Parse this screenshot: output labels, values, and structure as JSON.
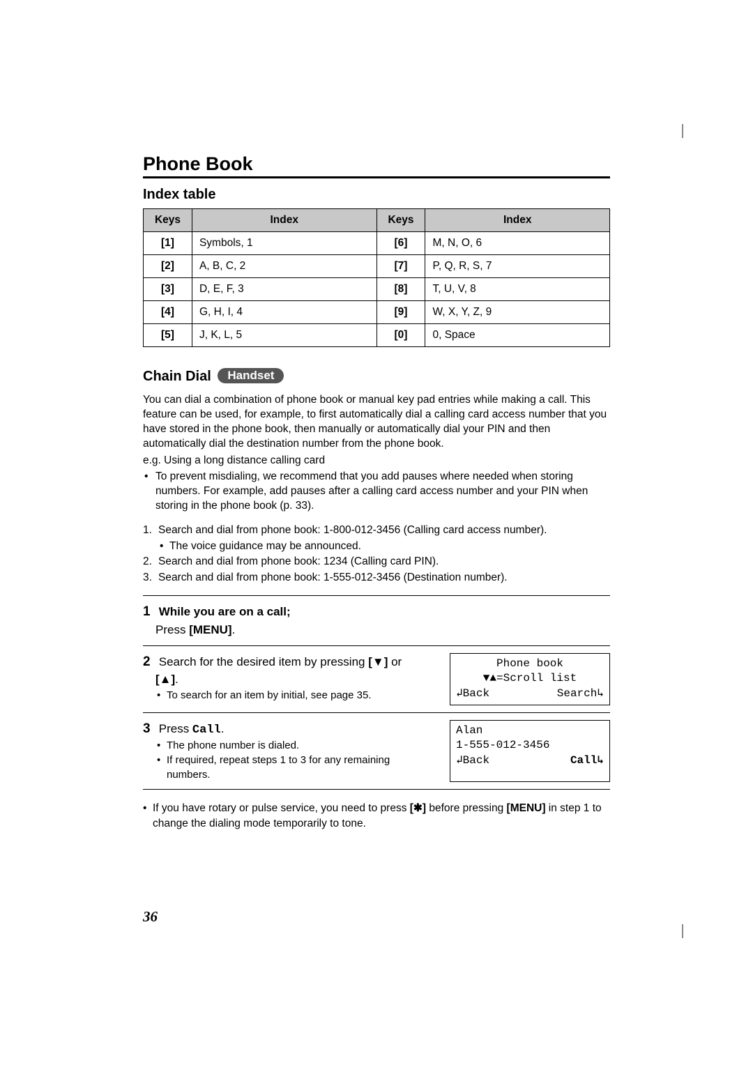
{
  "title": "Phone Book",
  "index_table": {
    "heading": "Index table",
    "headers": {
      "keys": "Keys",
      "index": "Index"
    },
    "left": [
      {
        "key": "[1]",
        "idx": "Symbols, 1"
      },
      {
        "key": "[2]",
        "idx": "A, B, C, 2"
      },
      {
        "key": "[3]",
        "idx": "D, E, F, 3"
      },
      {
        "key": "[4]",
        "idx": "G, H, I, 4"
      },
      {
        "key": "[5]",
        "idx": "J, K, L, 5"
      }
    ],
    "right": [
      {
        "key": "[6]",
        "idx": "M, N, O, 6"
      },
      {
        "key": "[7]",
        "idx": "P, Q, R, S, 7"
      },
      {
        "key": "[8]",
        "idx": "T, U, V, 8"
      },
      {
        "key": "[9]",
        "idx": "W, X, Y, Z, 9"
      },
      {
        "key": "[0]",
        "idx": "0, Space"
      }
    ]
  },
  "chain": {
    "title": "Chain Dial",
    "badge": "Handset",
    "intro": "You can dial a combination of phone book or manual key pad entries while making a call. This feature can be used, for example, to first automatically dial a calling card access number that you have stored in the phone book, then manually or automatically dial your PIN and then automatically dial the destination number from the phone book.",
    "eg": "e.g. Using a long distance calling card",
    "prevent": "To prevent misdialing, we recommend that you add pauses where needed when storing numbers. For example, add pauses after a calling card access number and your PIN when storing in the phone book (p. 33).",
    "steps_plain": {
      "s1": "Search and dial from phone book: 1-800-012-3456 (Calling card access number).",
      "s1_sub": "The voice guidance may be announced.",
      "s2": "Search and dial from phone book: 1234 (Calling card PIN).",
      "s3": "Search and dial from phone book: 1-555-012-3456 (Destination number)."
    },
    "proc": {
      "s1_num": "1",
      "s1_bold": "While you are on a call;",
      "s1_line2a": "Press ",
      "s1_line2b": "[MENU]",
      "s1_line2c": ".",
      "s2_num": "2",
      "s2_text_a": "Search for the desired item by pressing ",
      "s2_text_b": "[▼]",
      "s2_text_c": " or ",
      "s2_text_d": "[▲]",
      "s2_text_e": ".",
      "s2_sub": "To search for an item by initial, see page 35.",
      "s3_num": "3",
      "s3_text_a": "Press ",
      "s3_text_b": "Call",
      "s3_text_c": ".",
      "s3_sub1": "The phone number is dialed.",
      "s3_sub2": "If required, repeat steps 1 to 3 for any remaining numbers."
    },
    "lcd1": {
      "line1": "Phone book",
      "line2": "▼▲=Scroll list",
      "back": "↲Back",
      "right": "Search↳"
    },
    "lcd2": {
      "line1": "Alan",
      "line2": "1-555-012-3456",
      "back": "↲Back",
      "right": "Call↳"
    },
    "footnote_a": "If you have rotary or pulse service, you need to press ",
    "footnote_b": "[✱]",
    "footnote_c": " before pressing ",
    "footnote_d": "[MENU]",
    "footnote_e": " in step 1 to change the dialing mode temporarily to tone."
  },
  "page_number": "36"
}
